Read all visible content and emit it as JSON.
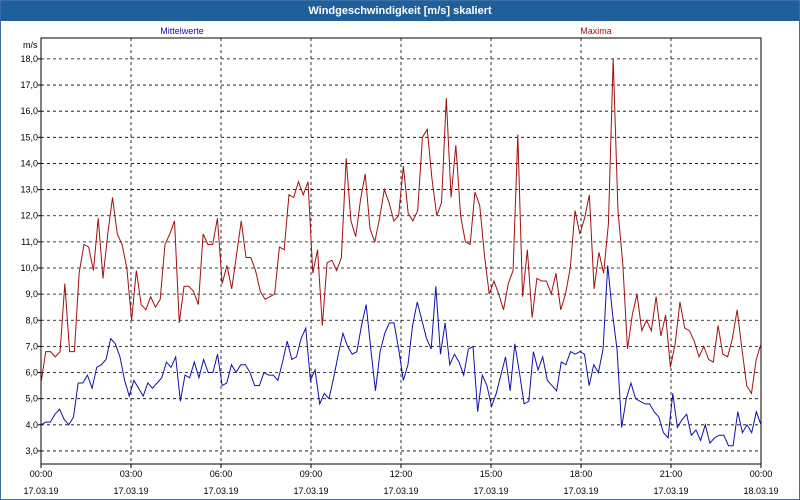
{
  "window": {
    "title": "Windgeschwindigkeit [m/s] skaliert"
  },
  "chart_data": {
    "type": "line",
    "title": "Windgeschwindigkeit [m/s] skaliert",
    "ylabel": "m/s",
    "ylim": [
      2.5,
      18.8
    ],
    "yticks": [
      "3,0",
      "4,0",
      "5,0",
      "6,0",
      "7,0",
      "8,0",
      "9,0",
      "10,0",
      "11,0",
      "12,0",
      "13,0",
      "14,0",
      "15,0",
      "16,0",
      "17,0",
      "18,0"
    ],
    "ytick_values": [
      3,
      4,
      5,
      6,
      7,
      8,
      9,
      10,
      11,
      12,
      13,
      14,
      15,
      16,
      17,
      18
    ],
    "xlim_hours": [
      0,
      24
    ],
    "xticks": [
      {
        "time": "00:00",
        "date": "17.03.19",
        "hour": 0
      },
      {
        "time": "03:00",
        "date": "17.03.19",
        "hour": 3
      },
      {
        "time": "06:00",
        "date": "17.03.19",
        "hour": 6
      },
      {
        "time": "09:00",
        "date": "17.03.19",
        "hour": 9
      },
      {
        "time": "12:00",
        "date": "17.03.19",
        "hour": 12
      },
      {
        "time": "15:00",
        "date": "17.03.19",
        "hour": 15
      },
      {
        "time": "18:00",
        "date": "17.03.19",
        "hour": 18
      },
      {
        "time": "21:00",
        "date": "17.03.19",
        "hour": 21
      },
      {
        "time": "00:00",
        "date": "18.03.19",
        "hour": 24
      }
    ],
    "grid": true,
    "series": [
      {
        "name": "Mittelwerte",
        "color": "#1010b0",
        "values": [
          4.0,
          4.1,
          4.1,
          4.4,
          4.6,
          4.2,
          4.0,
          4.3,
          5.6,
          5.6,
          5.9,
          5.4,
          6.2,
          6.3,
          6.5,
          7.3,
          7.1,
          6.6,
          5.7,
          5.1,
          5.7,
          5.4,
          5.1,
          5.6,
          5.4,
          5.6,
          5.8,
          6.4,
          6.2,
          6.6,
          4.9,
          5.9,
          5.8,
          6.4,
          5.8,
          6.5,
          6.0,
          6.0,
          6.7,
          5.5,
          5.6,
          6.3,
          6.0,
          6.3,
          6.3,
          6.0,
          5.5,
          5.5,
          6.0,
          5.9,
          5.9,
          5.7,
          6.4,
          7.2,
          6.5,
          6.6,
          7.3,
          7.7,
          5.7,
          6.1,
          4.8,
          5.2,
          5.0,
          5.8,
          6.7,
          7.5,
          7.0,
          6.7,
          6.8,
          7.8,
          8.6,
          6.9,
          5.3,
          6.8,
          7.5,
          7.9,
          7.9,
          6.9,
          5.7,
          6.3,
          7.8,
          8.7,
          8.0,
          7.3,
          6.9,
          9.3,
          6.7,
          7.9,
          6.3,
          6.7,
          6.4,
          5.9,
          6.9,
          7.0,
          4.5,
          5.9,
          5.5,
          4.7,
          5.2,
          5.9,
          6.6,
          5.3,
          7.1,
          6.0,
          4.8,
          4.9,
          6.8,
          6.1,
          6.6,
          5.7,
          5.5,
          5.3,
          6.4,
          6.3,
          6.8,
          6.7,
          6.8,
          6.7,
          5.5,
          6.3,
          6.0,
          6.9,
          10.1,
          8.3,
          6.9,
          3.9,
          5.0,
          5.6,
          5.0,
          4.9,
          4.8,
          4.8,
          4.5,
          4.3,
          3.7,
          3.5,
          5.2,
          3.9,
          4.2,
          4.4,
          3.6,
          3.8,
          3.4,
          4.0,
          3.3,
          3.5,
          3.6,
          3.6,
          3.2,
          3.2,
          4.5,
          3.7,
          4.0,
          3.7,
          4.5,
          4.0
        ]
      },
      {
        "name": "Maxima",
        "color": "#a01010",
        "values": [
          5.6,
          6.8,
          6.8,
          6.6,
          6.8,
          9.4,
          6.8,
          6.8,
          9.8,
          10.9,
          10.8,
          9.9,
          11.9,
          9.6,
          11.3,
          12.7,
          11.3,
          10.9,
          10.0,
          8.0,
          9.9,
          8.6,
          8.4,
          8.9,
          8.5,
          8.8,
          10.9,
          11.3,
          11.8,
          7.9,
          9.3,
          9.3,
          9.1,
          8.6,
          11.3,
          10.9,
          10.9,
          11.9,
          9.4,
          10.1,
          9.2,
          10.5,
          11.8,
          10.4,
          10.4,
          9.9,
          9.1,
          8.8,
          8.9,
          9.0,
          10.8,
          10.7,
          12.8,
          12.7,
          13.3,
          12.8,
          13.3,
          9.8,
          10.7,
          7.8,
          10.2,
          10.3,
          9.9,
          10.4,
          14.2,
          11.8,
          11.2,
          12.6,
          13.6,
          11.5,
          11.0,
          11.9,
          13.0,
          12.5,
          11.8,
          12.0,
          13.9,
          12.1,
          11.8,
          12.2,
          15.0,
          15.3,
          13.4,
          12.0,
          12.5,
          16.5,
          12.7,
          14.7,
          12.0,
          11.0,
          10.9,
          12.9,
          12.4,
          10.5,
          9.0,
          9.5,
          9.0,
          8.4,
          9.4,
          9.9,
          15.1,
          8.9,
          10.7,
          8.1,
          9.6,
          9.5,
          9.5,
          9.0,
          9.8,
          8.4,
          9.0,
          10.0,
          12.2,
          11.3,
          11.9,
          12.8,
          9.2,
          10.6,
          9.8,
          11.7,
          18.0,
          12.2,
          10.2,
          6.9,
          8.2,
          9.0,
          7.6,
          8.0,
          7.6,
          8.9,
          7.4,
          8.2,
          6.2,
          7.1,
          8.7,
          7.7,
          7.6,
          7.2,
          6.6,
          7.0,
          6.5,
          6.4,
          7.8,
          6.7,
          6.6,
          7.3,
          8.4,
          6.9,
          5.5,
          5.2,
          6.5,
          7.1
        ]
      }
    ]
  }
}
